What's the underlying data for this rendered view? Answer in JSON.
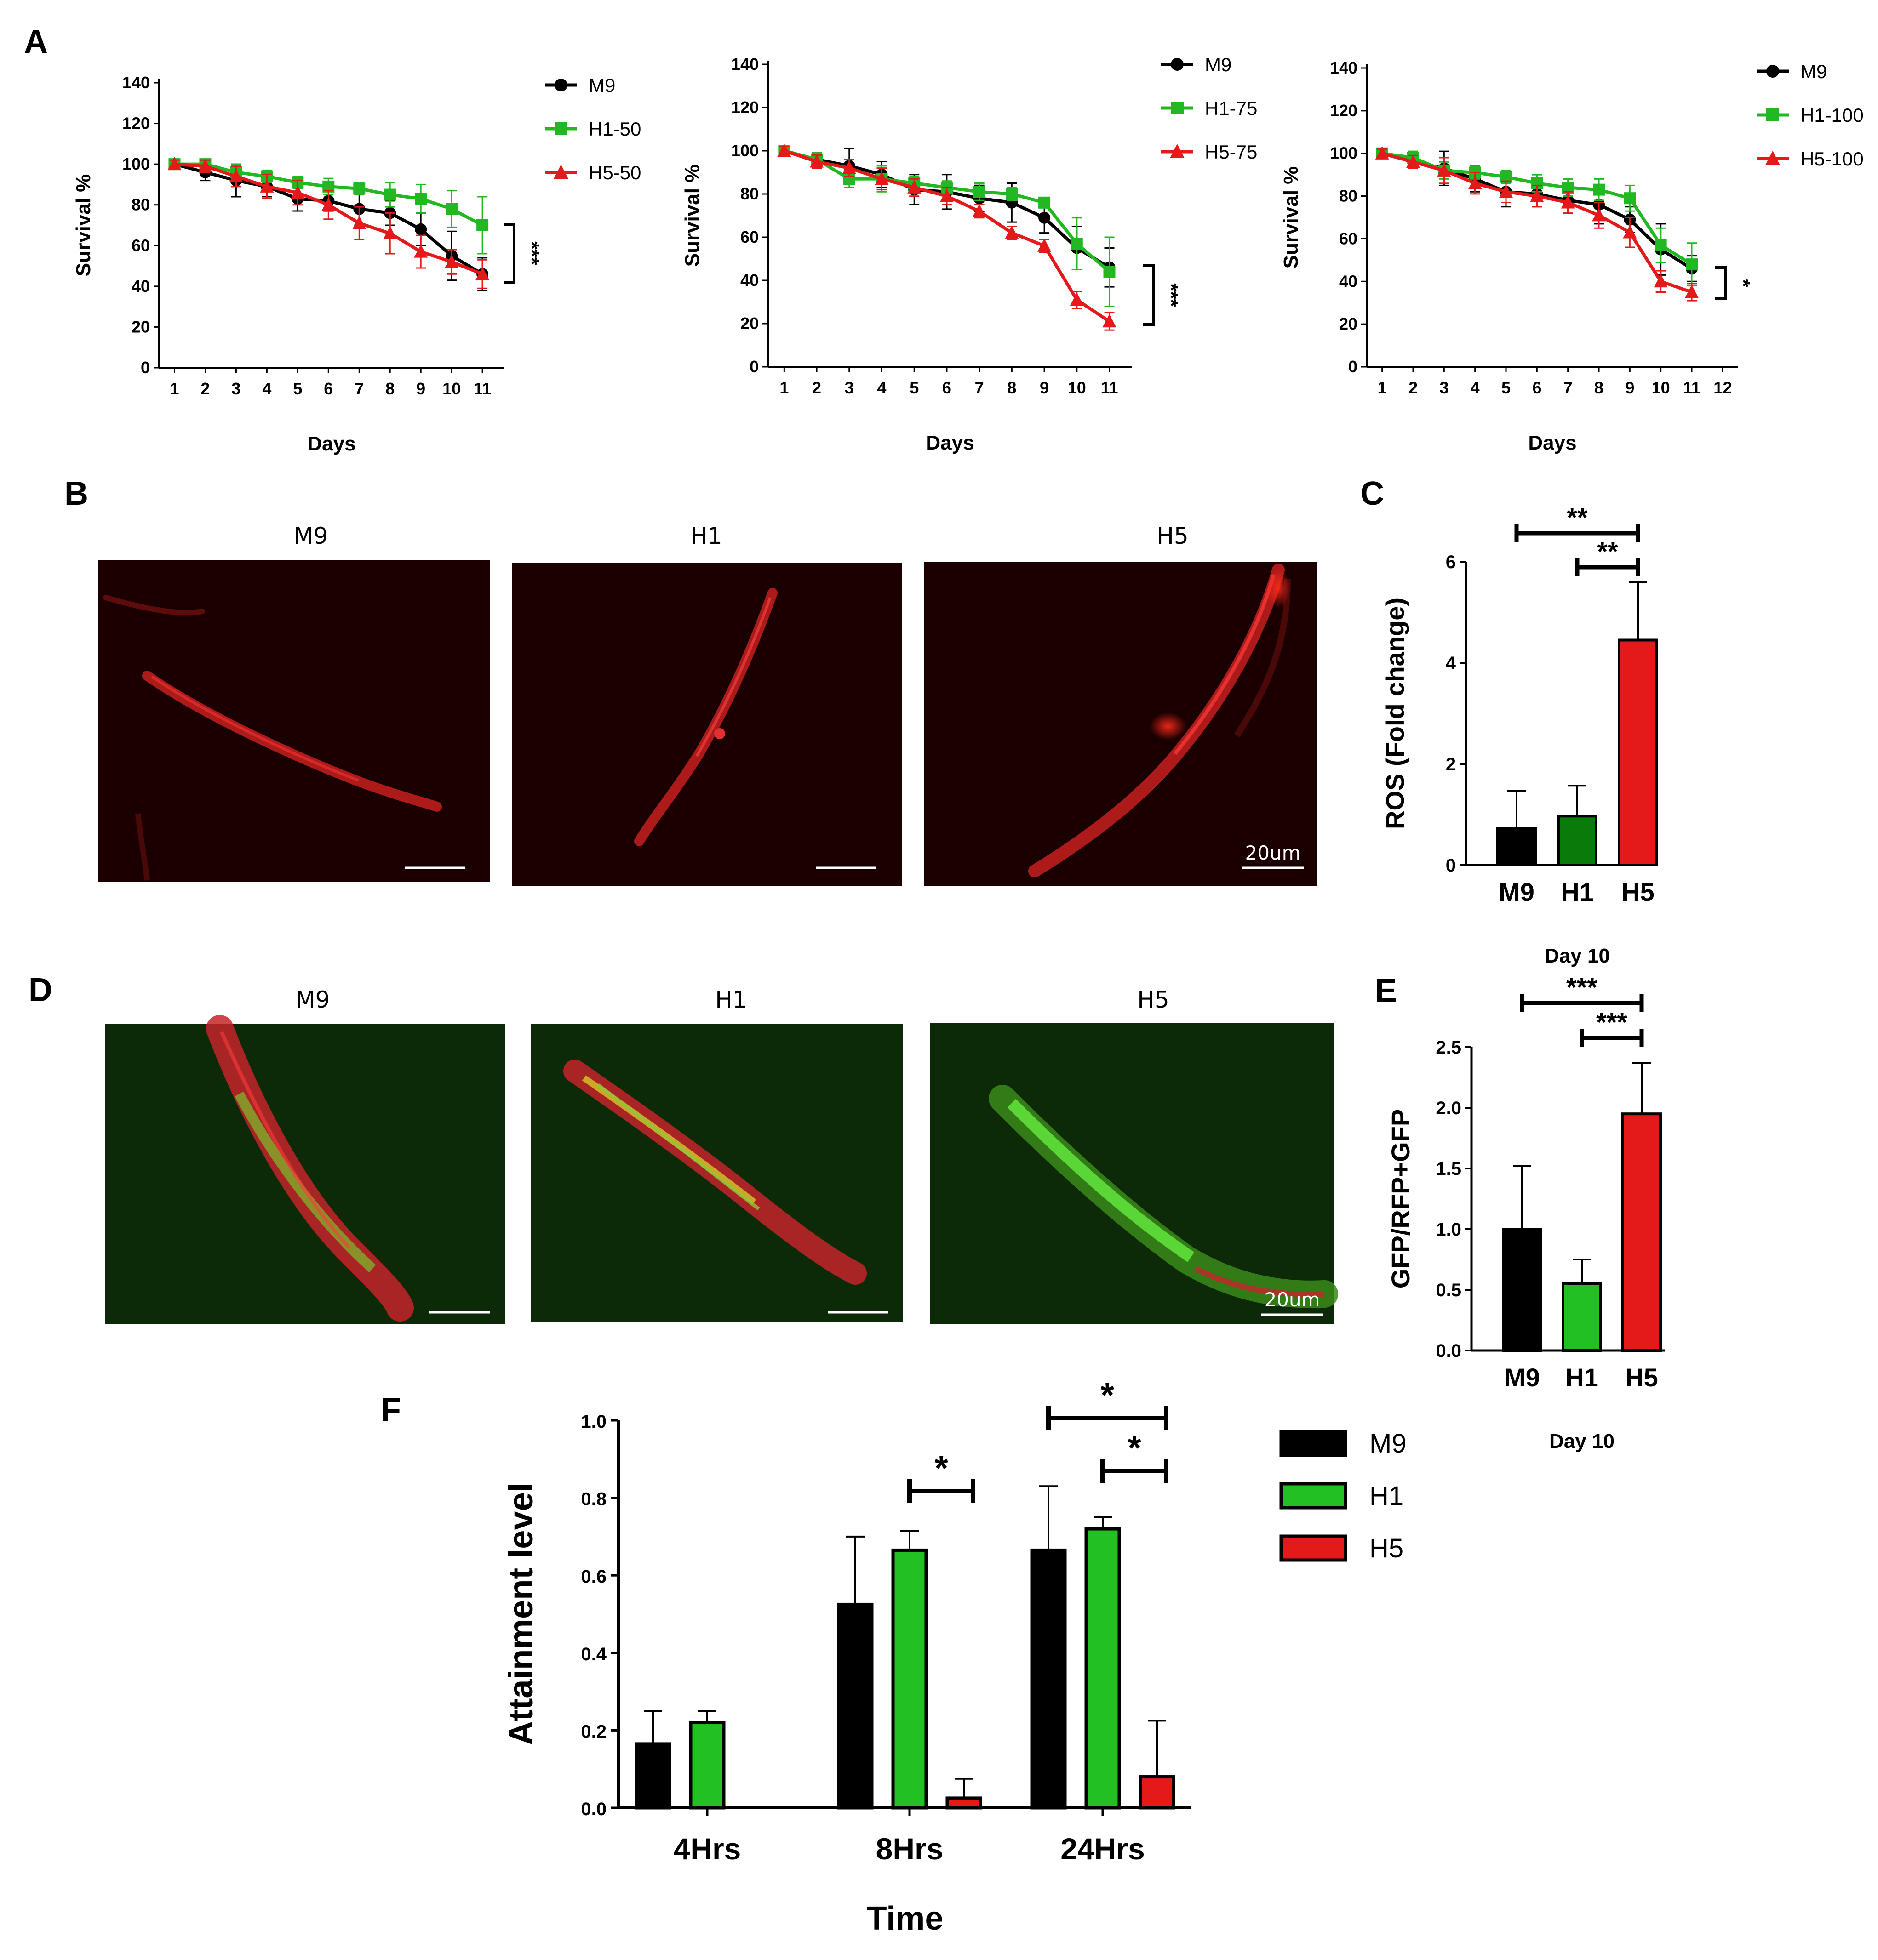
{
  "panel_labels": {
    "A": "A",
    "B": "B",
    "C": "C",
    "D": "D",
    "E": "E",
    "F": "F"
  },
  "colors": {
    "M9": "#000000",
    "H1": "#22b822",
    "H5": "#e41a1a",
    "H1_bar_C": "#0a7a0a",
    "H1_bar": "#22c022"
  },
  "chart_data": [
    {
      "id": "A1",
      "type": "line",
      "x": [
        1,
        2,
        3,
        4,
        5,
        6,
        7,
        8,
        9,
        10,
        11
      ],
      "xticks": [
        "1",
        "2",
        "3",
        "4",
        "5",
        "6",
        "7",
        "8",
        "9",
        "10",
        "11"
      ],
      "xlim": [
        0.5,
        11.7
      ],
      "ylim": [
        0,
        140
      ],
      "yticks": [
        0,
        20,
        40,
        60,
        80,
        100,
        120,
        140
      ],
      "xlabel": "Days",
      "ylabel": "Survival %",
      "series": [
        {
          "name": "M9",
          "marker": "circle",
          "color": "#000000",
          "values": [
            100,
            96,
            92,
            89,
            83,
            82,
            78,
            76,
            68,
            55,
            46
          ],
          "errors": [
            2,
            4,
            8,
            5,
            6,
            5,
            8,
            6,
            8,
            12,
            8
          ]
        },
        {
          "name": "H1-50",
          "marker": "square",
          "color": "#22b822",
          "values": [
            100,
            100,
            96,
            94,
            91,
            89,
            88,
            85,
            83,
            78,
            70
          ],
          "errors": [
            2,
            2,
            4,
            3,
            3,
            4,
            3,
            6,
            7,
            9,
            14
          ]
        },
        {
          "name": "H5-50",
          "marker": "triangle",
          "color": "#e41a1a",
          "values": [
            100,
            99,
            94,
            89,
            86,
            80,
            71,
            66,
            57,
            52,
            46
          ],
          "errors": [
            2,
            3,
            5,
            6,
            6,
            7,
            8,
            10,
            8,
            6,
            7
          ]
        }
      ],
      "significance": "***"
    },
    {
      "id": "A2",
      "type": "line",
      "x": [
        1,
        2,
        3,
        4,
        5,
        6,
        7,
        8,
        9,
        10,
        11
      ],
      "xticks": [
        "1",
        "2",
        "3",
        "4",
        "5",
        "6",
        "7",
        "8",
        "9",
        "10",
        "11"
      ],
      "xlim": [
        0.5,
        11.7
      ],
      "ylim": [
        0,
        140
      ],
      "yticks": [
        0,
        20,
        40,
        60,
        80,
        100,
        120,
        140
      ],
      "xlabel": "Days",
      "ylabel": "Survival %",
      "series": [
        {
          "name": "M9",
          "marker": "circle",
          "color": "#000000",
          "values": [
            100,
            96,
            93,
            89,
            82,
            81,
            78,
            76,
            69,
            55,
            46
          ],
          "errors": [
            2,
            3,
            8,
            6,
            7,
            8,
            6,
            9,
            7,
            10,
            9
          ]
        },
        {
          "name": "H1-75",
          "marker": "square",
          "color": "#22b822",
          "values": [
            100,
            96,
            87,
            87,
            85,
            83,
            81,
            80,
            76,
            57,
            44
          ],
          "errors": [
            2,
            3,
            4,
            6,
            3,
            3,
            4,
            3,
            2,
            12,
            16
          ]
        },
        {
          "name": "H5-75",
          "marker": "triangle",
          "color": "#e41a1a",
          "values": [
            100,
            95,
            92,
            87,
            83,
            79,
            72,
            62,
            56,
            31,
            21
          ],
          "errors": [
            2,
            3,
            4,
            5,
            4,
            4,
            3,
            3,
            3,
            4,
            4
          ]
        }
      ],
      "significance": "***"
    },
    {
      "id": "A3",
      "type": "line",
      "x": [
        1,
        2,
        3,
        4,
        5,
        6,
        7,
        8,
        9,
        10,
        11
      ],
      "xticks": [
        "1",
        "2",
        "3",
        "4",
        "5",
        "6",
        "7",
        "8",
        "9",
        "10",
        "11",
        "12"
      ],
      "xlim": [
        0.5,
        12.5
      ],
      "ylim": [
        0,
        140
      ],
      "yticks": [
        0,
        20,
        40,
        60,
        80,
        100,
        120,
        140
      ],
      "xlabel": "Days",
      "ylabel": "Survival %",
      "series": [
        {
          "name": "M9",
          "marker": "circle",
          "color": "#000000",
          "values": [
            100,
            96,
            93,
            88,
            82,
            81,
            78,
            76,
            69,
            55,
            46
          ],
          "errors": [
            2,
            3,
            8,
            6,
            7,
            6,
            6,
            9,
            6,
            12,
            6
          ]
        },
        {
          "name": "H1-100",
          "marker": "square",
          "color": "#22b822",
          "values": [
            100,
            98,
            92,
            91,
            89,
            86,
            84,
            83,
            79,
            57,
            48
          ],
          "errors": [
            2,
            3,
            4,
            3,
            3,
            4,
            4,
            5,
            6,
            8,
            10
          ]
        },
        {
          "name": "H5-100",
          "marker": "triangle",
          "color": "#e41a1a",
          "values": [
            100,
            96,
            92,
            86,
            82,
            80,
            77,
            71,
            63,
            40,
            35
          ],
          "errors": [
            2,
            3,
            6,
            5,
            5,
            5,
            5,
            6,
            7,
            5,
            4
          ]
        }
      ],
      "significance": "*"
    },
    {
      "id": "C",
      "type": "bar",
      "categories": [
        "M9",
        "H1",
        "H5"
      ],
      "values": [
        0.72,
        0.97,
        4.45
      ],
      "errors": [
        0.75,
        0.6,
        1.15
      ],
      "ylim": [
        0,
        6
      ],
      "yticks": [
        0,
        2,
        4,
        6
      ],
      "xlabel": "Day 10",
      "ylabel": "ROS (Fold change)",
      "significance": [
        {
          "from": "M9",
          "to": "H5",
          "label": "**"
        },
        {
          "from": "H1",
          "to": "H5",
          "label": "**"
        }
      ]
    },
    {
      "id": "E",
      "type": "bar",
      "categories": [
        "M9",
        "H1",
        "H5"
      ],
      "values": [
        1.0,
        0.55,
        1.95
      ],
      "errors": [
        0.52,
        0.2,
        0.42
      ],
      "ylim": [
        0,
        2.5
      ],
      "yticks": [
        "0.0",
        "0.5",
        "1.0",
        "1.5",
        "2.0",
        "2.5"
      ],
      "xlabel": "Day 10",
      "ylabel": "GFP/RFP+GFP",
      "significance": [
        {
          "from": "M9",
          "to": "H5",
          "label": "***"
        },
        {
          "from": "H1",
          "to": "H5",
          "label": "***"
        }
      ]
    },
    {
      "id": "F",
      "type": "bar",
      "categories": [
        "4Hrs",
        "8Hrs",
        "24Hrs"
      ],
      "series": [
        {
          "name": "M9",
          "color": "#000000",
          "values": [
            0.165,
            0.525,
            0.665
          ],
          "errors": [
            0.085,
            0.175,
            0.165
          ]
        },
        {
          "name": "H1",
          "color": "#22c022",
          "values": [
            0.22,
            0.665,
            0.72
          ],
          "errors": [
            0.03,
            0.05,
            0.03
          ]
        },
        {
          "name": "H5",
          "color": "#e41a1a",
          "values": [
            0.0,
            0.025,
            0.08
          ],
          "errors": [
            0.0,
            0.05,
            0.145
          ]
        }
      ],
      "ylim": [
        0,
        1.0
      ],
      "yticks": [
        "0.0",
        "0.2",
        "0.4",
        "0.6",
        "0.8",
        "1.0"
      ],
      "xlabel": "Time",
      "ylabel": "Attainment level",
      "significance": [
        {
          "group": "8Hrs",
          "from": "H1",
          "to": "H5",
          "label": "*"
        },
        {
          "group": "24Hrs",
          "from": "M9",
          "to": "H5",
          "label": "*"
        },
        {
          "group": "24Hrs",
          "from": "H1",
          "to": "H5",
          "label": "*"
        }
      ]
    }
  ],
  "images_B": {
    "titles": [
      "M9",
      "H1",
      "H5"
    ],
    "scale_label": "20um"
  },
  "images_D": {
    "titles": [
      "M9",
      "H1",
      "H5"
    ],
    "scale_label": "20um"
  }
}
